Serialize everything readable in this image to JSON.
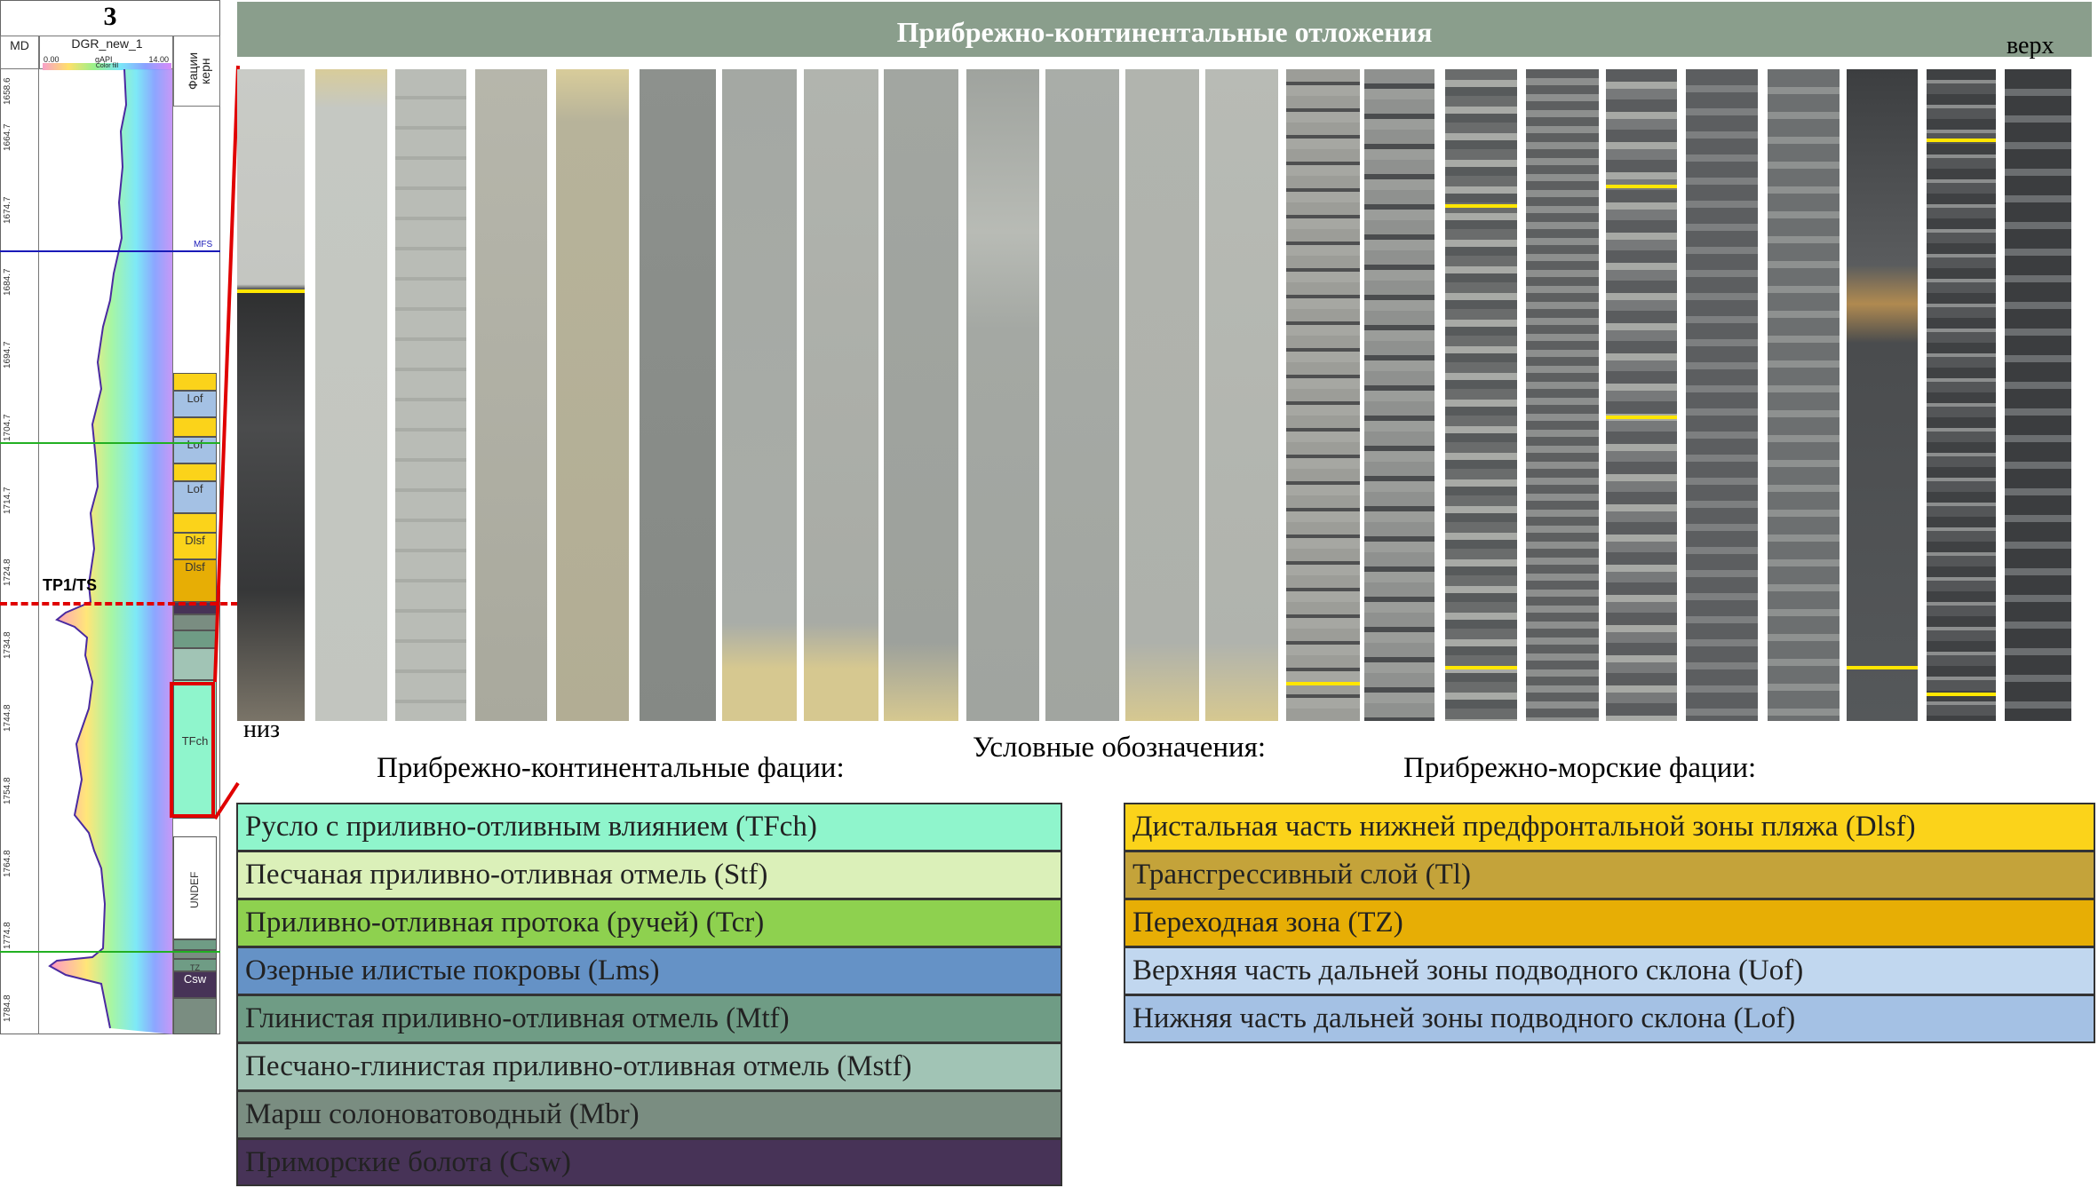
{
  "well_log": {
    "well_number": "3",
    "md_header": "MD",
    "gr_curve_name": "DGR_new_1",
    "gr_min": "0.00",
    "gr_unit": "gAPI",
    "gr_max": "14.00",
    "color_fill_label": "Color fill",
    "facies_header": "Фации керн",
    "depth_ticks": [
      "1658.6",
      "1664.7",
      "1674.7",
      "1684.7",
      "1694.7",
      "1704.7",
      "1714.7",
      "1724.8",
      "1734.8",
      "1744.8",
      "1754.8",
      "1764.8",
      "1774.8",
      "1784.8"
    ],
    "surface_mfs": "MFS",
    "surface_ts": "TP1/TS",
    "facies_labels": [
      "Lof",
      "Lof",
      "Lof",
      "Dlsf",
      "Dlsf",
      "TFch",
      "UNDEF",
      "Csw",
      "TZ"
    ]
  },
  "core_panel": {
    "title": "Прибрежно-континентальные отложения",
    "label_top": "верх",
    "label_bottom": "низ",
    "marker_color": "#ffe600",
    "column_count": 23
  },
  "legend": {
    "title": "Условные обозначения:",
    "continental_title": "Прибрежно-континентальные фации:",
    "marine_title": "Прибрежно-морские фации:",
    "continental": [
      {
        "label": "Русло с приливно-отливным влиянием (TFch)",
        "color": "#8ff5cc"
      },
      {
        "label": "Песчаная приливно-отливная отмель (Stf)",
        "color": "#dbf0b9"
      },
      {
        "label": "Приливно-отливная протока (ручей) (Tcr)",
        "color": "#8ed14f"
      },
      {
        "label": "Озерные илистые покровы (Lms)",
        "color": "#6592c6"
      },
      {
        "label": "Глинистая приливно-отливная отмель (Mtf)",
        "color": "#6f9c85"
      },
      {
        "label": "Песчано-глинистая приливно-отливная отмель (Mstf)",
        "color": "#a1c4b5"
      },
      {
        "label": "Марш солоноватоводный (Mbr)",
        "color": "#7a8d81"
      },
      {
        "label": "Приморские болота (Csw)",
        "color": "#473357"
      }
    ],
    "marine": [
      {
        "label": "Дистальная часть нижней предфронтальной зоны пляжа (Dlsf)",
        "color": "#fbd31a"
      },
      {
        "label": "Трансгрессивный слой (Tl)",
        "color": "#c4a33a"
      },
      {
        "label": "Переходная зона (TZ)",
        "color": "#e7ae05"
      },
      {
        "label": "Верхняя часть дальней зоны подводного склона (Uof)",
        "color": "#c1d7ef"
      },
      {
        "label": "Нижняя часть дальней зоны подводного склона (Lof)",
        "color": "#a4c1e4"
      }
    ]
  }
}
